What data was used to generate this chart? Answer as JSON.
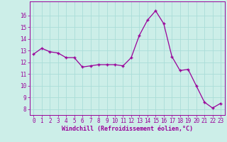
{
  "x": [
    0,
    1,
    2,
    3,
    4,
    5,
    6,
    7,
    8,
    9,
    10,
    11,
    12,
    13,
    14,
    15,
    16,
    17,
    18,
    19,
    20,
    21,
    22,
    23
  ],
  "y": [
    12.7,
    13.2,
    12.9,
    12.8,
    12.4,
    12.4,
    11.6,
    11.7,
    11.8,
    11.8,
    11.8,
    11.7,
    12.4,
    14.3,
    15.6,
    16.4,
    15.3,
    12.5,
    11.3,
    11.4,
    10.0,
    8.6,
    8.1,
    8.5
  ],
  "line_color": "#990099",
  "marker": "+",
  "marker_size": 3.5,
  "marker_lw": 1.0,
  "line_width": 0.9,
  "bg_color": "#cceee8",
  "grid_color": "#aaddd8",
  "xlabel": "Windchill (Refroidissement éolien,°C)",
  "xlabel_color": "#990099",
  "tick_color": "#990099",
  "ylim": [
    7.5,
    17.2
  ],
  "xlim": [
    -0.5,
    23.5
  ],
  "yticks": [
    8,
    9,
    10,
    11,
    12,
    13,
    14,
    15,
    16
  ],
  "xticks": [
    0,
    1,
    2,
    3,
    4,
    5,
    6,
    7,
    8,
    9,
    10,
    11,
    12,
    13,
    14,
    15,
    16,
    17,
    18,
    19,
    20,
    21,
    22,
    23
  ],
  "tick_fontsize": 5.5,
  "xlabel_fontsize": 6.0,
  "xlabel_fontweight": "bold"
}
